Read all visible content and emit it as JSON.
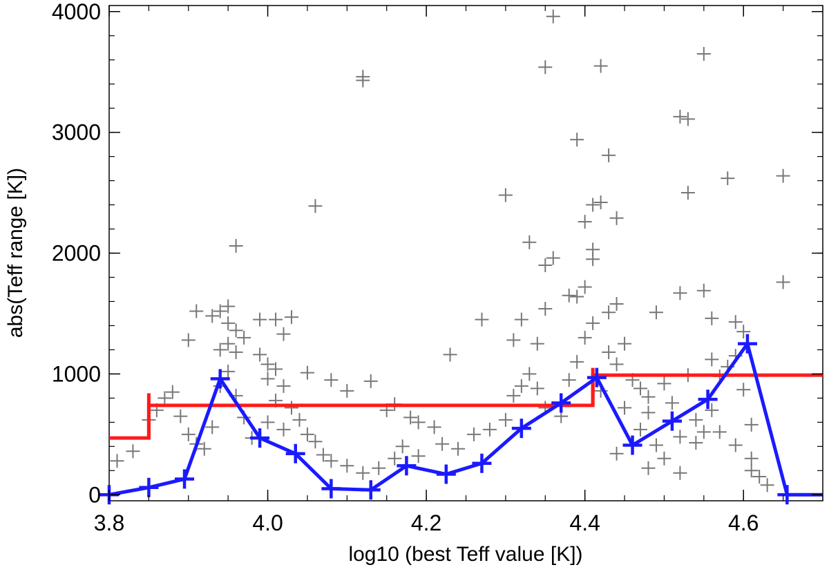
{
  "chart_data": {
    "type": "scatter",
    "title": "",
    "xlabel": "log10 (best Teff value [K])",
    "ylabel": "abs(Teff range [K])",
    "xlim": [
      3.8,
      4.7
    ],
    "ylim": [
      -50,
      4050
    ],
    "xticks": [
      3.8,
      4.0,
      4.2,
      4.4,
      4.6
    ],
    "xtick_labels": [
      "3.8",
      "4.0",
      "4.2",
      "4.4",
      "4.6"
    ],
    "yticks": [
      0,
      1000,
      2000,
      3000,
      4000
    ],
    "ytick_labels": [
      "0",
      "1000",
      "2000",
      "3000",
      "4000"
    ],
    "grid": false,
    "legend": "none",
    "colors": {
      "scatter": "#777777",
      "binned": "#1a1aff",
      "steps": "#ff1a1a"
    },
    "series": [
      {
        "marker": "plus",
        "points": [
          [
            3.9,
            1280
          ],
          [
            3.91,
            1520
          ],
          [
            3.93,
            1480
          ],
          [
            3.94,
            1520
          ],
          [
            3.95,
            1560
          ],
          [
            3.96,
            2060
          ],
          [
            3.95,
            1420
          ],
          [
            3.96,
            1360
          ],
          [
            3.97,
            1300
          ],
          [
            3.95,
            1250
          ],
          [
            3.94,
            1200
          ],
          [
            3.96,
            1180
          ],
          [
            3.99,
            1450
          ],
          [
            4.01,
            1450
          ],
          [
            4.02,
            1330
          ],
          [
            4.03,
            1470
          ],
          [
            3.99,
            1160
          ],
          [
            4.0,
            1080
          ],
          [
            4.01,
            1040
          ],
          [
            4.0,
            960
          ],
          [
            4.02,
            900
          ],
          [
            4.05,
            1010
          ],
          [
            4.06,
            2390
          ],
          [
            4.08,
            950
          ],
          [
            4.1,
            860
          ],
          [
            4.12,
            3430
          ],
          [
            4.12,
            3460
          ],
          [
            4.13,
            940
          ],
          [
            4.15,
            700
          ],
          [
            4.16,
            750
          ],
          [
            4.18,
            640
          ],
          [
            4.19,
            600
          ],
          [
            4.21,
            560
          ],
          [
            4.23,
            1160
          ],
          [
            4.27,
            1450
          ],
          [
            4.3,
            2480
          ],
          [
            4.31,
            1280
          ],
          [
            4.32,
            1450
          ],
          [
            4.34,
            1250
          ],
          [
            4.35,
            1540
          ],
          [
            4.35,
            3540
          ],
          [
            4.36,
            3960
          ],
          [
            4.33,
            2090
          ],
          [
            4.35,
            1900
          ],
          [
            4.36,
            1960
          ],
          [
            4.38,
            1650
          ],
          [
            4.39,
            1640
          ],
          [
            4.4,
            1720
          ],
          [
            4.39,
            2940
          ],
          [
            4.4,
            2260
          ],
          [
            4.41,
            2030
          ],
          [
            4.41,
            1950
          ],
          [
            4.41,
            2400
          ],
          [
            4.42,
            2420
          ],
          [
            4.43,
            2810
          ],
          [
            4.44,
            2290
          ],
          [
            4.42,
            3550
          ],
          [
            4.43,
            1510
          ],
          [
            4.44,
            1580
          ],
          [
            4.45,
            1250
          ],
          [
            4.49,
            1510
          ],
          [
            4.52,
            3130
          ],
          [
            4.53,
            3110
          ],
          [
            4.53,
            2500
          ],
          [
            4.52,
            1670
          ],
          [
            4.55,
            1690
          ],
          [
            4.55,
            3650
          ],
          [
            4.56,
            1460
          ],
          [
            4.58,
            2620
          ],
          [
            4.59,
            1430
          ],
          [
            4.6,
            1350
          ],
          [
            4.61,
            580
          ],
          [
            4.61,
            200
          ],
          [
            4.65,
            1760
          ],
          [
            4.65,
            2640
          ],
          [
            4.47,
            880
          ],
          [
            4.48,
            810
          ],
          [
            4.5,
            920
          ],
          [
            4.51,
            760
          ],
          [
            4.53,
            990
          ],
          [
            4.54,
            430
          ],
          [
            4.55,
            520
          ],
          [
            4.57,
            980
          ],
          [
            4.58,
            1060
          ],
          [
            4.59,
            1150
          ],
          [
            4.6,
            870
          ],
          [
            4.56,
            1120
          ],
          [
            4.46,
            950
          ],
          [
            4.48,
            680
          ],
          [
            3.81,
            280
          ],
          [
            3.83,
            360
          ],
          [
            3.85,
            620
          ],
          [
            3.86,
            700
          ],
          [
            3.87,
            800
          ],
          [
            3.88,
            850
          ],
          [
            3.89,
            650
          ],
          [
            3.9,
            500
          ],
          [
            3.91,
            420
          ],
          [
            3.92,
            380
          ],
          [
            3.93,
            560
          ],
          [
            3.94,
            900
          ],
          [
            3.95,
            1020
          ],
          [
            3.96,
            820
          ],
          [
            3.97,
            640
          ],
          [
            3.98,
            470
          ],
          [
            4.0,
            600
          ],
          [
            4.01,
            780
          ],
          [
            4.02,
            540
          ],
          [
            4.03,
            720
          ],
          [
            4.04,
            620
          ],
          [
            4.05,
            500
          ],
          [
            4.06,
            440
          ],
          [
            4.07,
            330
          ],
          [
            4.08,
            280
          ],
          [
            4.1,
            240
          ],
          [
            4.12,
            180
          ],
          [
            4.14,
            220
          ],
          [
            4.16,
            300
          ],
          [
            4.17,
            400
          ],
          [
            4.19,
            320
          ],
          [
            4.22,
            420
          ],
          [
            4.24,
            380
          ],
          [
            4.26,
            500
          ],
          [
            4.28,
            540
          ],
          [
            4.3,
            620
          ],
          [
            4.31,
            820
          ],
          [
            4.32,
            900
          ],
          [
            4.33,
            1000
          ],
          [
            4.34,
            880
          ],
          [
            4.35,
            720
          ],
          [
            4.37,
            650
          ],
          [
            4.38,
            950
          ],
          [
            4.39,
            1100
          ],
          [
            4.4,
            1300
          ],
          [
            4.41,
            1420
          ],
          [
            4.42,
            860
          ],
          [
            4.43,
            1180
          ],
          [
            4.44,
            1080
          ],
          [
            4.45,
            720
          ],
          [
            4.47,
            540
          ],
          [
            4.49,
            410
          ],
          [
            4.5,
            300
          ],
          [
            4.52,
            480
          ],
          [
            4.54,
            620
          ],
          [
            4.56,
            700
          ],
          [
            4.57,
            520
          ],
          [
            4.59,
            410
          ],
          [
            4.61,
            300
          ],
          [
            4.62,
            150
          ],
          [
            4.63,
            80
          ],
          [
            4.52,
            180
          ],
          [
            4.48,
            220
          ],
          [
            4.44,
            340
          ]
        ]
      },
      {
        "marker": "plus",
        "points": [
          [
            3.8,
            0
          ],
          [
            3.85,
            60
          ],
          [
            3.895,
            130
          ],
          [
            3.94,
            960
          ],
          [
            3.99,
            470
          ],
          [
            4.035,
            340
          ],
          [
            4.08,
            50
          ],
          [
            4.13,
            40
          ],
          [
            4.175,
            240
          ],
          [
            4.225,
            170
          ],
          [
            4.27,
            260
          ],
          [
            4.32,
            550
          ],
          [
            4.37,
            760
          ],
          [
            4.415,
            970
          ],
          [
            4.46,
            410
          ],
          [
            4.51,
            610
          ],
          [
            4.555,
            790
          ],
          [
            4.605,
            1250
          ],
          [
            4.655,
            0
          ],
          [
            4.7,
            0
          ]
        ]
      },
      {
        "points": [
          [
            3.8,
            470
          ],
          [
            3.85,
            470
          ],
          [
            3.85,
            740
          ],
          [
            4.41,
            740
          ],
          [
            4.41,
            990
          ],
          [
            4.7,
            990
          ]
        ],
        "error_bars": [
          {
            "x": 3.85,
            "low": 470,
            "high": 840
          },
          {
            "x": 4.41,
            "low": 740,
            "high": 1050
          }
        ]
      }
    ]
  }
}
